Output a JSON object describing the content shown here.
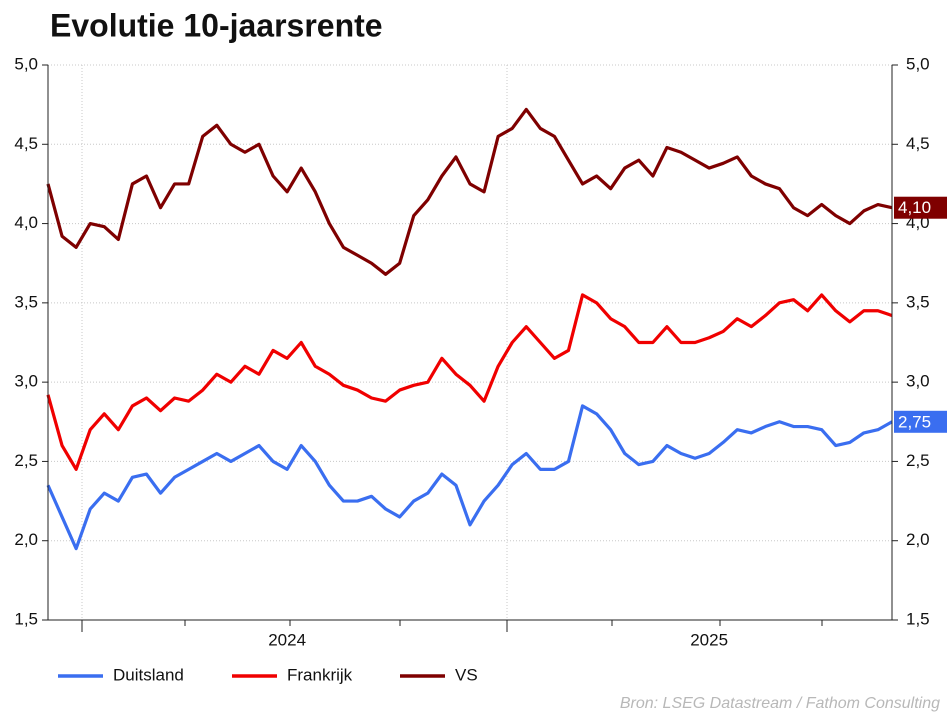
{
  "chart_data": {
    "type": "line",
    "title": "Evolutie 10-jaarsrente",
    "source": "Bron: LSEG Datastream / Fathom Consulting",
    "categories": [
      null,
      null,
      null,
      null,
      null,
      null,
      null,
      null,
      null,
      null,
      null,
      null,
      null,
      null,
      null,
      null,
      null,
      "2024",
      null,
      null,
      null,
      null,
      null,
      null,
      null,
      null,
      null,
      null,
      null,
      null,
      null,
      null,
      null,
      null,
      null,
      null,
      null,
      null,
      null,
      null,
      null,
      null,
      null,
      null,
      null,
      null,
      null,
      "2025",
      null,
      null,
      null,
      null,
      null,
      null,
      null,
      null,
      null,
      null,
      null,
      null,
      null
    ],
    "ylim": [
      1.5,
      5.0
    ],
    "yticks": [
      {
        "value": 1.5,
        "label": "1,5"
      },
      {
        "value": 2.0,
        "label": "2,0"
      },
      {
        "value": 2.5,
        "label": "2,5"
      },
      {
        "value": 3.0,
        "label": "3,0"
      },
      {
        "value": 3.5,
        "label": "3,5"
      },
      {
        "value": 4.0,
        "label": "4,0"
      },
      {
        "value": 4.5,
        "label": "4,5"
      },
      {
        "value": 5.0,
        "label": "5,0"
      }
    ],
    "y2lim": [
      1.5,
      5.0
    ],
    "y2ticks": [
      {
        "value": 1.5,
        "label": "1,5"
      },
      {
        "value": 2.0,
        "label": "2,0"
      },
      {
        "value": 2.5,
        "label": "2,5"
      },
      {
        "value": 3.0,
        "label": "3,0"
      },
      {
        "value": 3.5,
        "label": "3,5"
      },
      {
        "value": 4.0,
        "label": "4,0"
      },
      {
        "value": 4.5,
        "label": "4,5"
      },
      {
        "value": 5.0,
        "label": "5,0"
      }
    ],
    "grid": true,
    "legend": "bottom",
    "series": [
      {
        "name": "Duitsland",
        "color": "#3a6ef0",
        "values": [
          2.35,
          2.15,
          1.95,
          2.2,
          2.3,
          2.25,
          2.4,
          2.42,
          2.3,
          2.4,
          2.45,
          2.5,
          2.55,
          2.5,
          2.55,
          2.6,
          2.5,
          2.45,
          2.6,
          2.5,
          2.35,
          2.25,
          2.25,
          2.28,
          2.2,
          2.15,
          2.25,
          2.3,
          2.42,
          2.35,
          2.1,
          2.25,
          2.35,
          2.48,
          2.55,
          2.45,
          2.45,
          2.5,
          2.85,
          2.8,
          2.7,
          2.55,
          2.48,
          2.5,
          2.6,
          2.55,
          2.52,
          2.55,
          2.62,
          2.7,
          2.68,
          2.72,
          2.75,
          2.72,
          2.72,
          2.7,
          2.6,
          2.62,
          2.68,
          2.7,
          2.75
        ],
        "value_labels": [
          null,
          null,
          null,
          null,
          null,
          null,
          null,
          null,
          null,
          null,
          null,
          null,
          null,
          null,
          null,
          null,
          null,
          null,
          null,
          null,
          null,
          null,
          null,
          null,
          null,
          null,
          null,
          null,
          null,
          null,
          null,
          null,
          null,
          null,
          null,
          null,
          null,
          null,
          null,
          null,
          null,
          null,
          null,
          null,
          null,
          null,
          null,
          null,
          null,
          null,
          null,
          null,
          null,
          null,
          null,
          null,
          null,
          null,
          null,
          null,
          "2,75"
        ]
      },
      {
        "name": "Frankrijk",
        "color": "#f00000",
        "values": [
          2.92,
          2.6,
          2.45,
          2.7,
          2.8,
          2.7,
          2.85,
          2.9,
          2.82,
          2.9,
          2.88,
          2.95,
          3.05,
          3.0,
          3.1,
          3.05,
          3.2,
          3.15,
          3.25,
          3.1,
          3.05,
          2.98,
          2.95,
          2.9,
          2.88,
          2.95,
          2.98,
          3.0,
          3.15,
          3.05,
          2.98,
          2.88,
          3.1,
          3.25,
          3.35,
          3.25,
          3.15,
          3.2,
          3.55,
          3.5,
          3.4,
          3.35,
          3.25,
          3.25,
          3.35,
          3.25,
          3.25,
          3.28,
          3.32,
          3.4,
          3.35,
          3.42,
          3.5,
          3.52,
          3.45,
          3.55,
          3.45,
          3.38,
          3.45,
          3.45,
          3.42
        ]
      },
      {
        "name": "VS",
        "color": "#7f0000",
        "values": [
          4.25,
          3.92,
          3.85,
          4.0,
          3.98,
          3.9,
          4.25,
          4.3,
          4.1,
          4.25,
          4.25,
          4.55,
          4.62,
          4.5,
          4.45,
          4.5,
          4.3,
          4.2,
          4.35,
          4.2,
          4.0,
          3.85,
          3.8,
          3.75,
          3.68,
          3.75,
          4.05,
          4.15,
          4.3,
          4.42,
          4.25,
          4.2,
          4.55,
          4.6,
          4.72,
          4.6,
          4.55,
          4.4,
          4.25,
          4.3,
          4.22,
          4.35,
          4.4,
          4.3,
          4.48,
          4.45,
          4.4,
          4.35,
          4.38,
          4.42,
          4.3,
          4.25,
          4.22,
          4.1,
          4.05,
          4.12,
          4.05,
          4.0,
          4.08,
          4.12,
          4.1
        ],
        "value_labels": [
          null,
          null,
          null,
          null,
          null,
          null,
          null,
          null,
          null,
          null,
          null,
          null,
          null,
          null,
          null,
          null,
          null,
          null,
          null,
          null,
          null,
          null,
          null,
          null,
          null,
          null,
          null,
          null,
          null,
          null,
          null,
          null,
          null,
          null,
          null,
          null,
          null,
          null,
          null,
          null,
          null,
          null,
          null,
          null,
          null,
          null,
          null,
          null,
          null,
          null,
          null,
          null,
          null,
          null,
          null,
          null,
          null,
          null,
          null,
          null,
          "4,10"
        ]
      }
    ]
  }
}
